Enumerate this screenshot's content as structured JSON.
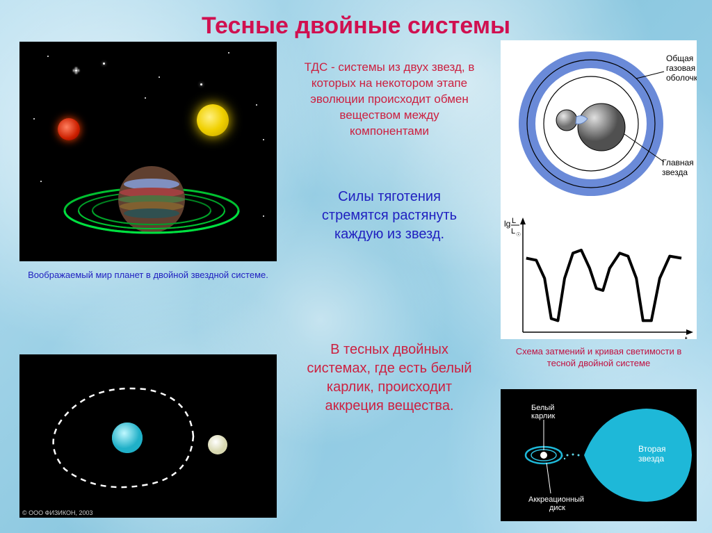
{
  "title": "Тесные двойные системы",
  "text_top": "ТДС - системы из двух звезд, в которых на некотором этапе эволюции происходит обмен веществом между компонентами",
  "text_mid": "Силы тяготения стремятся растянуть каждую из звезд.",
  "text_bottom": "В тесных двойных системах, где есть белый карлик, происходит аккреция вещества.",
  "caption1": "Воображаемый мир планет в двойной звездной системе.",
  "caption3": "Схема затмений и кривая светимости в тесной двойной системе",
  "copyright": "© ООО ФИЗИКОН, 2003",
  "diagram3": {
    "label_shell": "Общая газовая оболочка",
    "label_star": "Главная звезда",
    "y_axis": "lg L/L☉",
    "x_axis": "t",
    "shell_color": "#7090e0",
    "star_main_color": "#888888",
    "star_small_color": "#999999",
    "curve_points": [
      [
        0.02,
        0.3
      ],
      [
        0.08,
        0.32
      ],
      [
        0.13,
        0.5
      ],
      [
        0.17,
        0.9
      ],
      [
        0.21,
        0.92
      ],
      [
        0.25,
        0.5
      ],
      [
        0.3,
        0.25
      ],
      [
        0.35,
        0.22
      ],
      [
        0.4,
        0.4
      ],
      [
        0.44,
        0.6
      ],
      [
        0.48,
        0.62
      ],
      [
        0.52,
        0.4
      ],
      [
        0.58,
        0.25
      ],
      [
        0.63,
        0.28
      ],
      [
        0.68,
        0.5
      ],
      [
        0.72,
        0.92
      ],
      [
        0.77,
        0.92
      ],
      [
        0.82,
        0.5
      ],
      [
        0.88,
        0.28
      ],
      [
        0.95,
        0.3
      ]
    ]
  },
  "diagram4": {
    "label_dwarf": "Белый карлик",
    "label_star2": "Вторая звезда",
    "label_disk": "Аккреационный диск",
    "star_color": "#1eb8d8",
    "dwarf_color": "#ffffff"
  },
  "colors": {
    "title": "#d01050",
    "text_primary": "#cc2040",
    "text_secondary": "#2020c0"
  }
}
